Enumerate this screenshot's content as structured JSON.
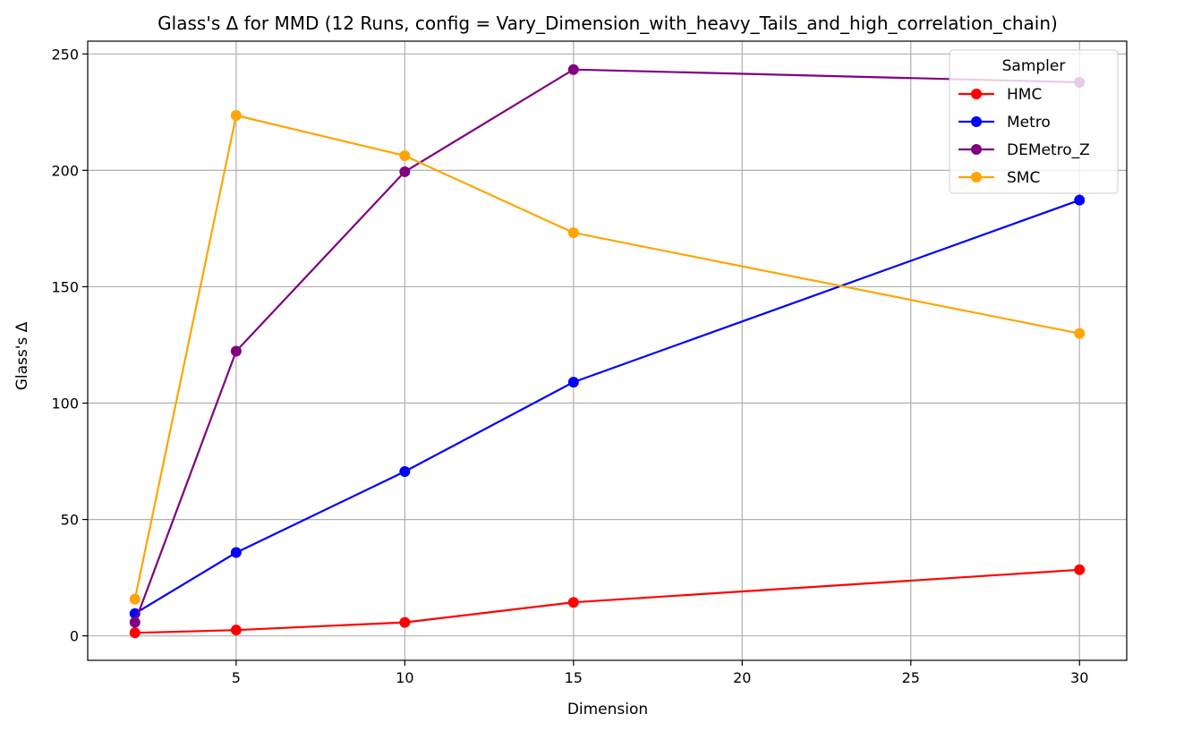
{
  "chart_data": {
    "type": "line",
    "title": "Glass's Δ for MMD (12 Runs, config = Vary_Dimension_with_heavy_Tails_and_high_correlation_chain)",
    "xlabel": "Dimension",
    "ylabel": "Glass's Δ",
    "x": [
      2,
      5,
      10,
      15,
      30
    ],
    "xlim": [
      0.6,
      31.4
    ],
    "ylim": [
      -10.5,
      255.5
    ],
    "xticks": [
      5,
      10,
      15,
      20,
      25,
      30
    ],
    "yticks": [
      0,
      50,
      100,
      150,
      200,
      250
    ],
    "grid": true,
    "legend": {
      "title": "Sampler",
      "position": "top-right"
    },
    "series": [
      {
        "name": "HMC",
        "color": "#ff0000",
        "values": [
          1.3,
          2.5,
          5.8,
          14.4,
          28.4
        ]
      },
      {
        "name": "Metro",
        "color": "#0000ff",
        "values": [
          9.6,
          35.8,
          70.6,
          109.0,
          187.2
        ]
      },
      {
        "name": "DEMetro_Z",
        "color": "#800080",
        "values": [
          5.8,
          122.3,
          199.4,
          243.3,
          237.8
        ]
      },
      {
        "name": "SMC",
        "color": "#ffa500",
        "values": [
          15.8,
          223.6,
          206.3,
          173.2,
          129.9
        ]
      }
    ]
  }
}
